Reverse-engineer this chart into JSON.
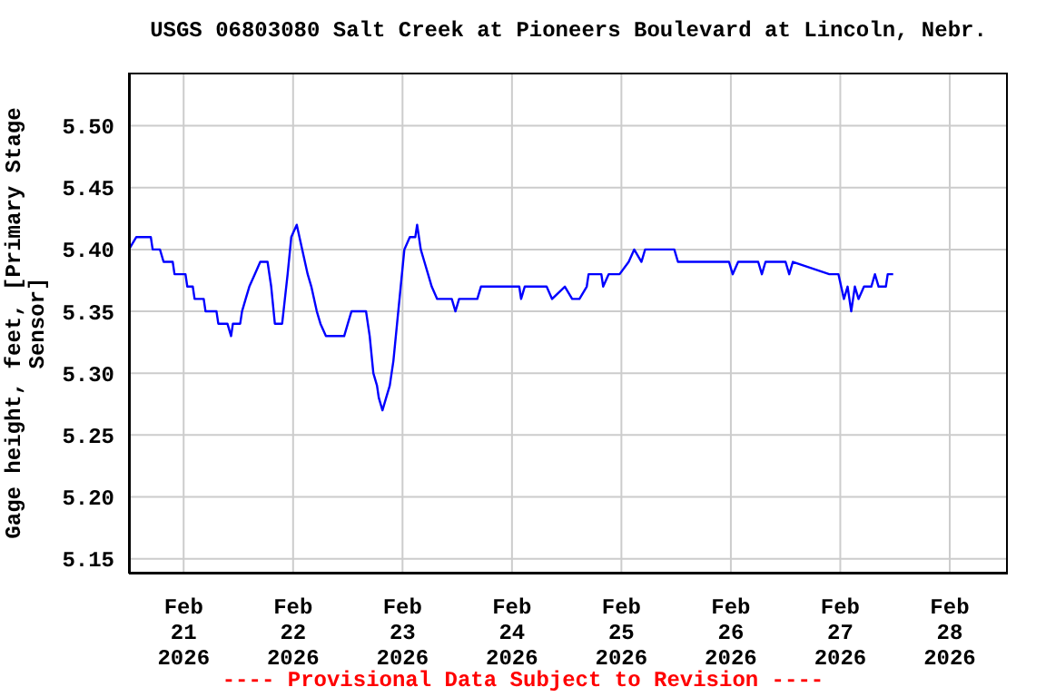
{
  "chart_data": {
    "type": "line",
    "title": "USGS 06803080 Salt Creek at Pioneers Boulevard at Lincoln, Nebr.",
    "ylabel": "Gage height, feet, [Primary Stage Sensor]",
    "annotations": [
      "---- Provisional Data Subject to Revision ----"
    ],
    "grid": true,
    "legend": false,
    "marker": "none",
    "line_style": "solid",
    "xlim": [
      "2026-02-20T12:00",
      "2026-02-28T12:45"
    ],
    "xticks": [
      {
        "value": "2026-02-21",
        "label": "Feb\n21\n2026"
      },
      {
        "value": "2026-02-22",
        "label": "Feb\n22\n2026"
      },
      {
        "value": "2026-02-23",
        "label": "Feb\n23\n2026"
      },
      {
        "value": "2026-02-24",
        "label": "Feb\n24\n2026"
      },
      {
        "value": "2026-02-25",
        "label": "Feb\n25\n2026"
      },
      {
        "value": "2026-02-26",
        "label": "Feb\n26\n2026"
      },
      {
        "value": "2026-02-27",
        "label": "Feb\n27\n2026"
      },
      {
        "value": "2026-02-28",
        "label": "Feb\n28\n2026"
      }
    ],
    "ylim": [
      5.138,
      5.543
    ],
    "yticks": [
      {
        "value": 5.15,
        "label": "5.15"
      },
      {
        "value": 5.2,
        "label": "5.20"
      },
      {
        "value": 5.25,
        "label": "5.25"
      },
      {
        "value": 5.3,
        "label": "5.30"
      },
      {
        "value": 5.35,
        "label": "5.35"
      },
      {
        "value": 5.4,
        "label": "5.40"
      },
      {
        "value": 5.45,
        "label": "5.45"
      },
      {
        "value": 5.5,
        "label": "5.50"
      }
    ],
    "series": [
      {
        "color": "#0000ff",
        "x": [
          "2026-02-20T12:00",
          "2026-02-20T13:36",
          "2026-02-20T16:48",
          "2026-02-20T17:12",
          "2026-02-20T18:48",
          "2026-02-20T19:36",
          "2026-02-20T21:36",
          "2026-02-20T22:00",
          "2026-02-21T00:24",
          "2026-02-21T00:48",
          "2026-02-21T02:00",
          "2026-02-21T02:24",
          "2026-02-21T04:24",
          "2026-02-21T04:48",
          "2026-02-21T07:12",
          "2026-02-21T07:36",
          "2026-02-21T09:36",
          "2026-02-21T10:24",
          "2026-02-21T10:48",
          "2026-02-21T12:24",
          "2026-02-21T12:48",
          "2026-02-21T13:36",
          "2026-02-21T14:24",
          "2026-02-21T15:36",
          "2026-02-21T16:48",
          "2026-02-21T18:24",
          "2026-02-21T19:12",
          "2026-02-21T20:00",
          "2026-02-21T21:36",
          "2026-02-21T22:48",
          "2026-02-21T23:36",
          "2026-02-22T00:48",
          "2026-02-22T02:00",
          "2026-02-22T03:12",
          "2026-02-22T04:00",
          "2026-02-22T05:12",
          "2026-02-22T06:00",
          "2026-02-22T07:12",
          "2026-02-22T11:12",
          "2026-02-22T12:00",
          "2026-02-22T12:48",
          "2026-02-22T16:00",
          "2026-02-22T16:48",
          "2026-02-22T17:36",
          "2026-02-22T18:24",
          "2026-02-22T18:48",
          "2026-02-22T19:36",
          "2026-02-22T20:24",
          "2026-02-22T21:12",
          "2026-02-22T22:00",
          "2026-02-22T22:48",
          "2026-02-22T23:36",
          "2026-02-23T00:24",
          "2026-02-23T01:36",
          "2026-02-23T02:48",
          "2026-02-23T03:12",
          "2026-02-23T04:00",
          "2026-02-23T04:48",
          "2026-02-23T05:36",
          "2026-02-23T06:24",
          "2026-02-23T07:36",
          "2026-02-23T10:48",
          "2026-02-23T11:36",
          "2026-02-23T12:24",
          "2026-02-23T16:24",
          "2026-02-23T17:12",
          "2026-02-24T01:36",
          "2026-02-24T02:00",
          "2026-02-24T02:48",
          "2026-02-24T07:36",
          "2026-02-24T08:48",
          "2026-02-24T11:36",
          "2026-02-24T13:12",
          "2026-02-24T14:48",
          "2026-02-24T16:24",
          "2026-02-24T16:48",
          "2026-02-24T19:36",
          "2026-02-24T20:00",
          "2026-02-24T21:12",
          "2026-02-24T23:36",
          "2026-02-25T01:36",
          "2026-02-25T02:48",
          "2026-02-25T04:24",
          "2026-02-25T05:12",
          "2026-02-25T11:36",
          "2026-02-25T12:24",
          "2026-02-25T23:36",
          "2026-02-26T00:24",
          "2026-02-26T01:36",
          "2026-02-26T06:00",
          "2026-02-26T06:48",
          "2026-02-26T07:36",
          "2026-02-26T12:00",
          "2026-02-26T12:48",
          "2026-02-26T13:36",
          "2026-02-26T21:36",
          "2026-02-26T23:36",
          "2026-02-27T00:48",
          "2026-02-27T01:36",
          "2026-02-27T02:24",
          "2026-02-27T03:12",
          "2026-02-27T04:00",
          "2026-02-27T05:12",
          "2026-02-27T06:48",
          "2026-02-27T07:36",
          "2026-02-27T08:24",
          "2026-02-27T10:00",
          "2026-02-27T10:24",
          "2026-02-27T11:36"
        ],
        "values": [
          5.4,
          5.41,
          5.41,
          5.4,
          5.4,
          5.39,
          5.39,
          5.38,
          5.38,
          5.37,
          5.37,
          5.36,
          5.36,
          5.35,
          5.35,
          5.34,
          5.34,
          5.33,
          5.34,
          5.34,
          5.35,
          5.36,
          5.37,
          5.38,
          5.39,
          5.39,
          5.37,
          5.34,
          5.34,
          5.38,
          5.41,
          5.42,
          5.4,
          5.38,
          5.37,
          5.35,
          5.34,
          5.33,
          5.33,
          5.34,
          5.35,
          5.35,
          5.33,
          5.3,
          5.29,
          5.28,
          5.27,
          5.28,
          5.29,
          5.31,
          5.34,
          5.37,
          5.4,
          5.41,
          5.41,
          5.42,
          5.4,
          5.39,
          5.38,
          5.37,
          5.36,
          5.36,
          5.35,
          5.36,
          5.36,
          5.37,
          5.37,
          5.36,
          5.37,
          5.37,
          5.36,
          5.37,
          5.36,
          5.36,
          5.37,
          5.38,
          5.38,
          5.37,
          5.38,
          5.38,
          5.39,
          5.4,
          5.39,
          5.4,
          5.4,
          5.39,
          5.39,
          5.38,
          5.39,
          5.39,
          5.38,
          5.39,
          5.39,
          5.38,
          5.39,
          5.38,
          5.38,
          5.36,
          5.37,
          5.35,
          5.37,
          5.36,
          5.37,
          5.37,
          5.38,
          5.37,
          5.37,
          5.38,
          5.38
        ]
      }
    ]
  }
}
